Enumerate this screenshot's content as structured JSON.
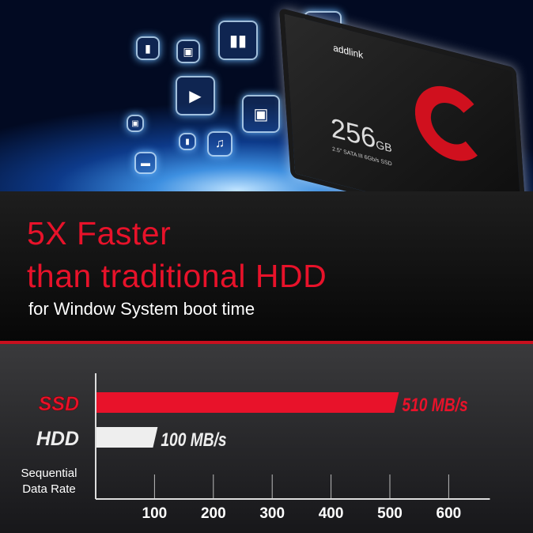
{
  "hero": {
    "product": {
      "brand": "addlink",
      "capacity": "256",
      "capacity_unit": "GB",
      "spec": "2.5\" SATA III 6Gb/s SSD"
    },
    "icons": [
      "bar-chart-icon",
      "music-note-icon",
      "image-icon",
      "video-play-icon",
      "folder-icon"
    ]
  },
  "headline": {
    "line1": "5X Faster",
    "line2": "than traditional HDD",
    "subtitle": "for Window System boot time"
  },
  "colors": {
    "accent": "#e8122a",
    "hdd_bar": "#eeeeee",
    "background": "#1e1e1e"
  },
  "chart_data": {
    "type": "bar",
    "orientation": "horizontal",
    "categories": [
      "SSD",
      "HDD"
    ],
    "values": [
      510,
      100
    ],
    "data_labels": [
      "510 MB/s",
      "100 MB/s"
    ],
    "colors": [
      "#e8122a",
      "#eeeeee"
    ],
    "ylabel": "Sequential Data Rate",
    "xticks": [
      100,
      200,
      300,
      400,
      500,
      600
    ],
    "xlim": [
      0,
      670
    ],
    "grid": true
  }
}
